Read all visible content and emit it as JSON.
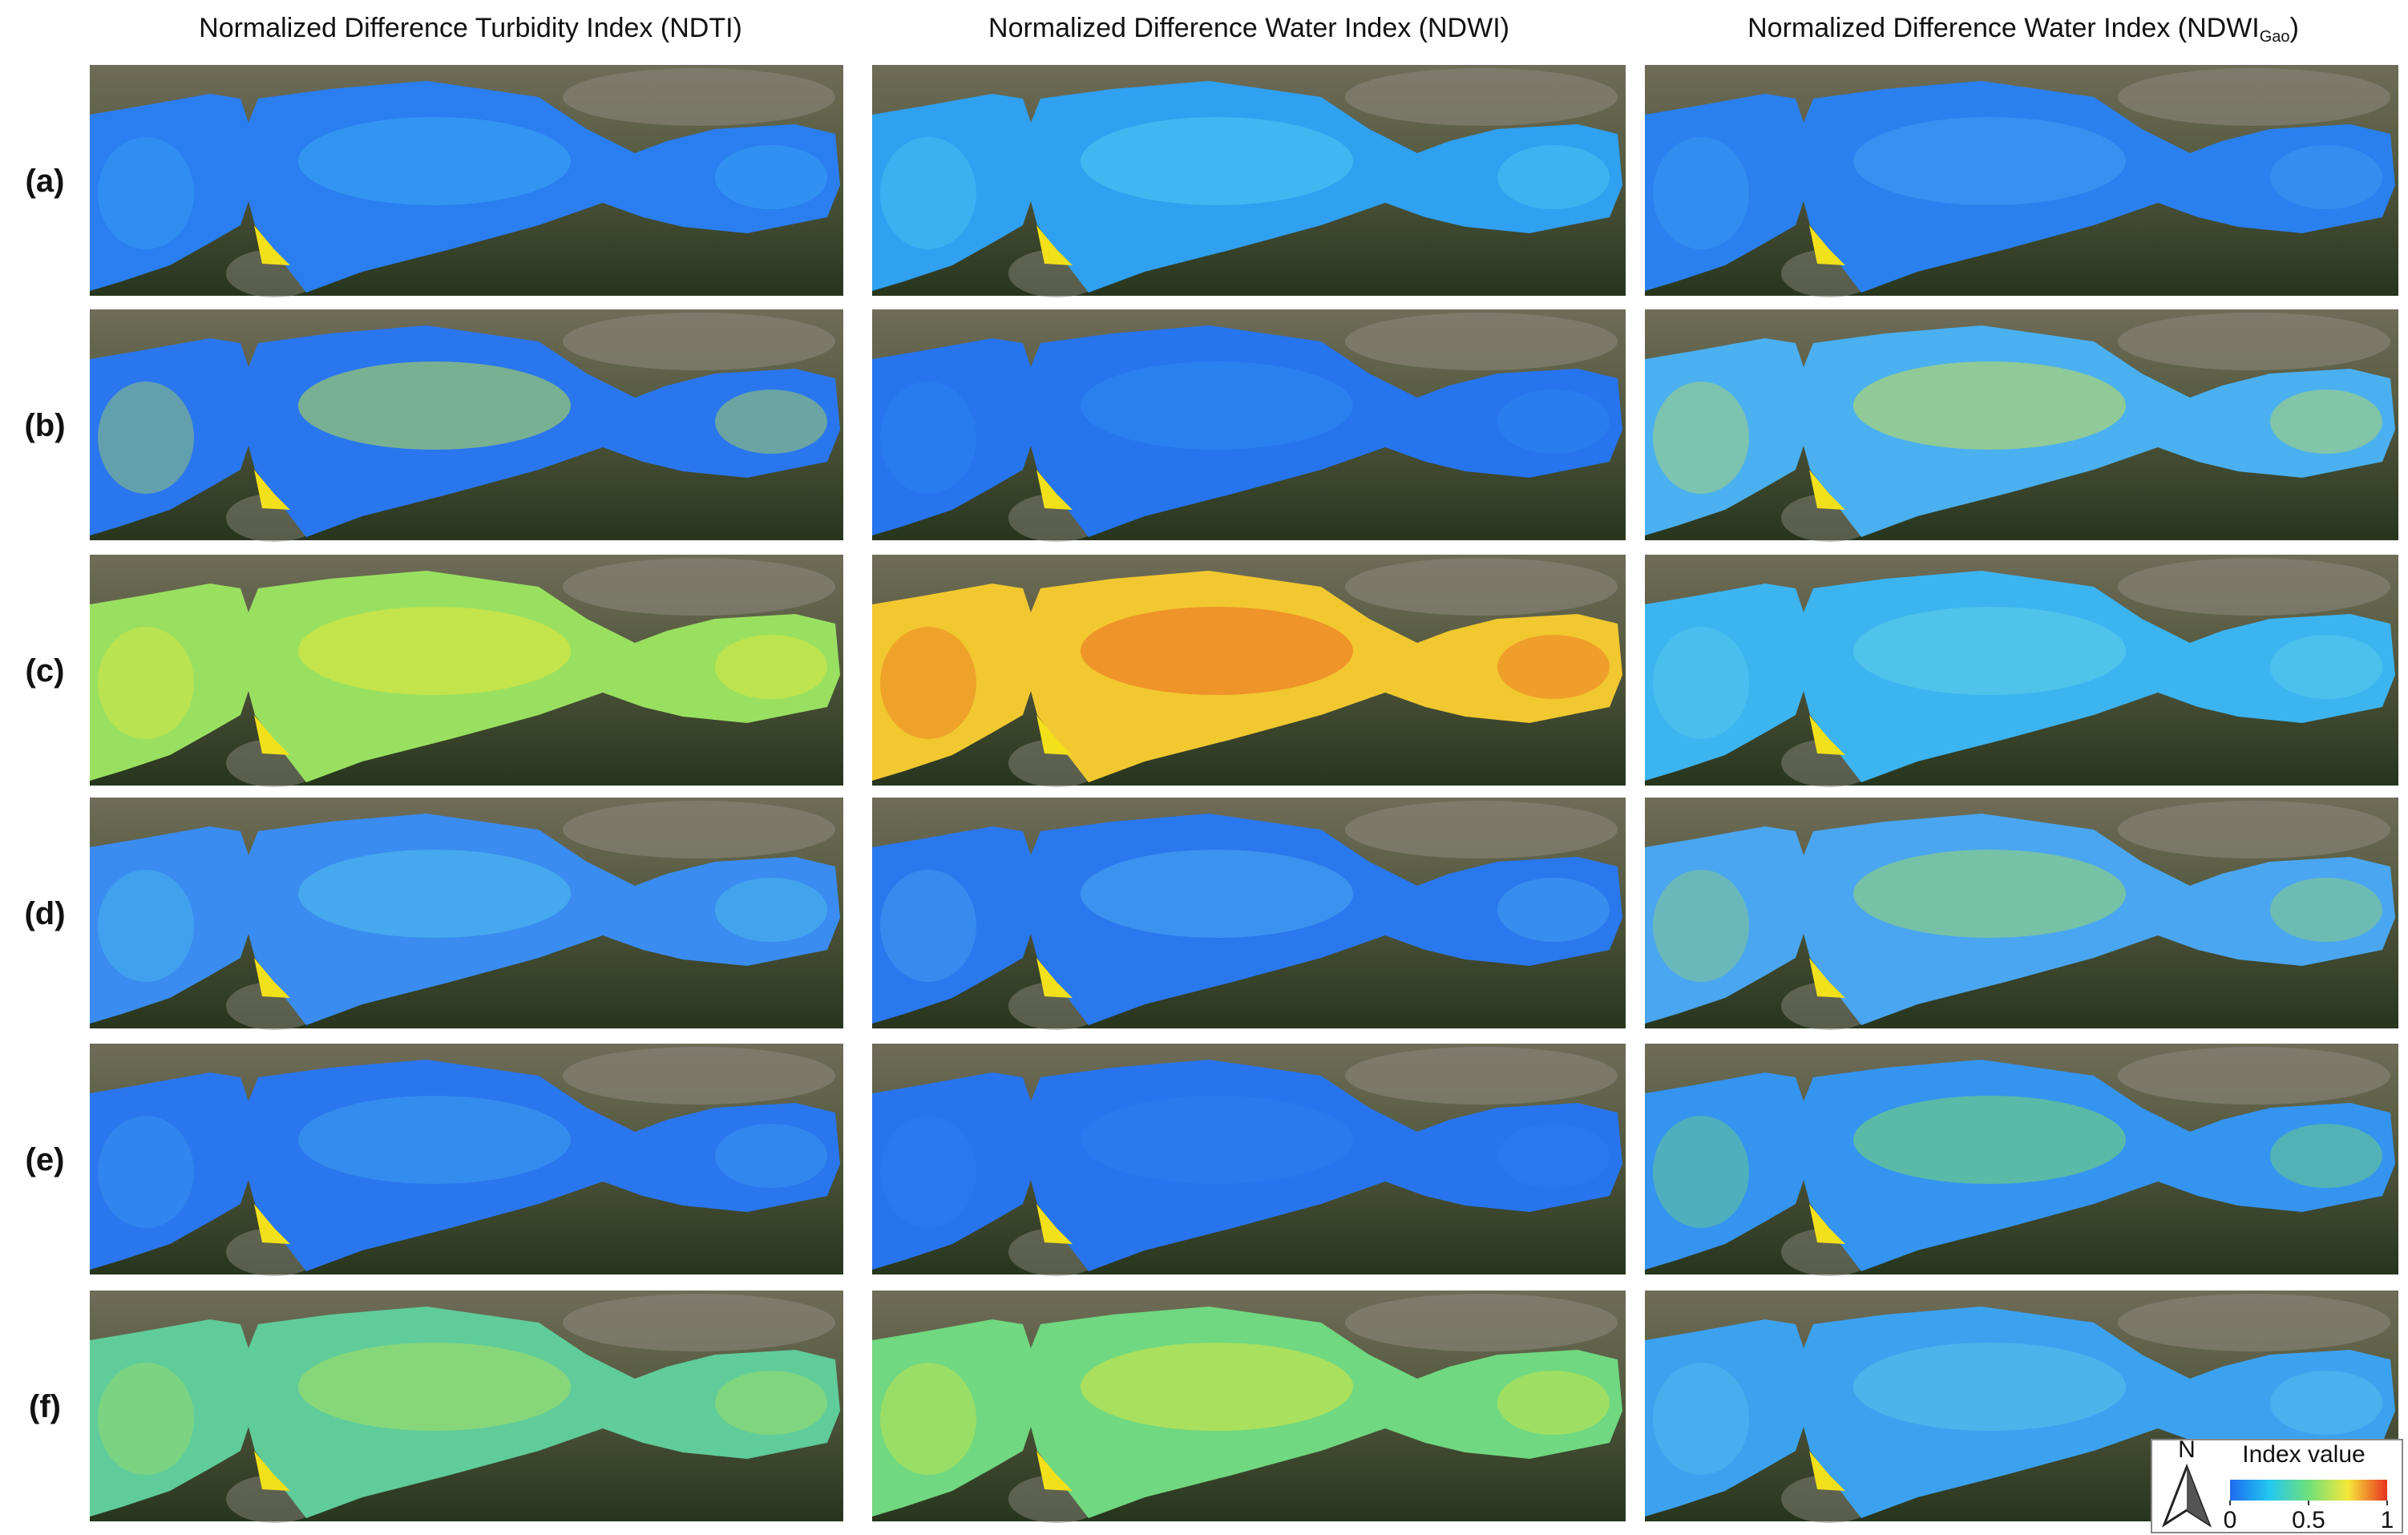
{
  "columns": [
    {
      "title": "Normalized Difference Turbidity Index (NDTI)"
    },
    {
      "title": "Normalized Difference Water Index (NDWI)"
    },
    {
      "title": "Normalized Difference Water Index (NDWI",
      "title_subscript": "Gao",
      "title_end": ")"
    }
  ],
  "rows": [
    "(a)",
    "(b)",
    "(c)",
    "(d)",
    "(e)",
    "(f)"
  ],
  "legend": {
    "north": "N",
    "title": "Index value",
    "ticks": [
      0,
      0.5,
      1
    ]
  }
}
